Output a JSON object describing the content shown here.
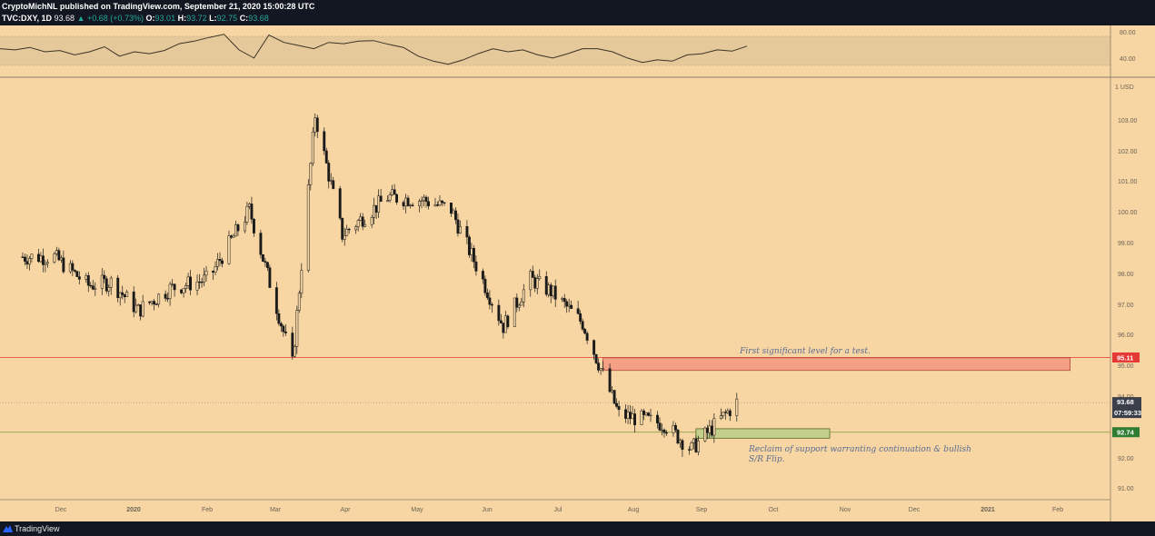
{
  "header": {
    "publisher_line": "CryptoMichNL published on TradingView.com, September 21, 2020 15:00:28 UTC",
    "symbol": "TVC:DXY, 1D",
    "last": "93.68",
    "change": "▲ +0.68 (+0.73%)",
    "ohlc_o_label": "O:",
    "ohlc_o": "93.01",
    "ohlc_h_label": "H:",
    "ohlc_h": "93.72",
    "ohlc_l_label": "L:",
    "ohlc_l": "92.75",
    "ohlc_c_label": "C:",
    "ohlc_c": "93.68"
  },
  "footer": {
    "brand": "TradingView",
    "logo_icon": "tradingview-logo-icon"
  },
  "colors": {
    "background": "#f7d6a3",
    "candle": "#1a1a1a",
    "resistance_line": "#e53935",
    "resistance_zone": "#f4a084",
    "support_line": "#7a9a3a",
    "support_zone": "#c4cf8c",
    "annotation": "#5a6c93"
  },
  "chart_data": {
    "type": "candlestick",
    "currency_label": "USD",
    "price_ticks": [
      "103.00",
      "102.00",
      "101.00",
      "100.00",
      "99.00",
      "98.00",
      "97.00",
      "96.00",
      "95.00",
      "94.00",
      "92.00",
      "91.00"
    ],
    "ylim": [
      90.6,
      104.0
    ],
    "x_labels": [
      "Dec",
      "2020",
      "Feb",
      "Mar",
      "Apr",
      "May",
      "Jun",
      "Jul",
      "Aug",
      "Sep",
      "Oct",
      "Nov",
      "Dec",
      "2021",
      "Feb"
    ],
    "x_range": [
      "2019-11-01",
      "2021-02-20"
    ],
    "closes": [
      {
        "x": "2019-11-10",
        "close": 98.3
      },
      {
        "x": "2019-11-25",
        "close": 98.3
      },
      {
        "x": "2019-12-10",
        "close": 97.4
      },
      {
        "x": "2019-12-20",
        "close": 97.5
      },
      {
        "x": "2020-01-01",
        "close": 96.6
      },
      {
        "x": "2020-01-15",
        "close": 97.3
      },
      {
        "x": "2020-02-01",
        "close": 97.6
      },
      {
        "x": "2020-02-19",
        "close": 99.8
      },
      {
        "x": "2020-03-09",
        "close": 94.9
      },
      {
        "x": "2020-03-19",
        "close": 102.8
      },
      {
        "x": "2020-03-31",
        "close": 99.0
      },
      {
        "x": "2020-04-20",
        "close": 100.2
      },
      {
        "x": "2020-05-06",
        "close": 100.1
      },
      {
        "x": "2020-05-18",
        "close": 99.8
      },
      {
        "x": "2020-06-10",
        "close": 96.1
      },
      {
        "x": "2020-06-22",
        "close": 97.6
      },
      {
        "x": "2020-07-01",
        "close": 97.2
      },
      {
        "x": "2020-07-15",
        "close": 96.2
      },
      {
        "x": "2020-07-31",
        "close": 93.3
      },
      {
        "x": "2020-08-20",
        "close": 93.0
      },
      {
        "x": "2020-09-01",
        "close": 92.2
      },
      {
        "x": "2020-09-21",
        "close": 93.68
      }
    ],
    "rsi": {
      "levels": [
        "80.00",
        "40.00"
      ],
      "values": [
        60,
        58,
        62,
        55,
        57,
        50,
        55,
        63,
        48,
        55,
        52,
        57,
        68,
        72,
        78,
        83,
        58,
        45,
        82,
        70,
        65,
        60,
        70,
        68,
        72,
        73,
        67,
        62,
        48,
        40,
        35,
        42,
        52,
        60,
        55,
        58,
        50,
        45,
        52,
        60,
        60,
        55,
        45,
        38,
        42,
        40,
        50,
        52,
        58,
        56,
        64
      ]
    },
    "levels": [
      {
        "name": "resistance",
        "price": 95.11,
        "tag": "95.11"
      },
      {
        "name": "support",
        "price": 92.74,
        "tag": "92.74"
      },
      {
        "name": "last",
        "price": 93.68,
        "tag": "93.68",
        "countdown": "07:59:33"
      }
    ],
    "zones": [
      {
        "name": "resistance-zone",
        "x_start": "2020-07-24",
        "x_end": "2021-02-15",
        "y_low": 94.7,
        "y_high": 95.1
      },
      {
        "name": "support-zone",
        "x_start": "2020-09-03",
        "x_end": "2020-11-01",
        "y_low": 92.55,
        "y_high": 92.85
      }
    ],
    "annotations": [
      {
        "name": "resistance-annotation",
        "text": "First significant level for a test."
      },
      {
        "name": "support-annotation-line1",
        "text": "Reclaim of support warranting continuation & bullish"
      },
      {
        "name": "support-annotation-line2",
        "text": "S/R Flip."
      }
    ]
  }
}
